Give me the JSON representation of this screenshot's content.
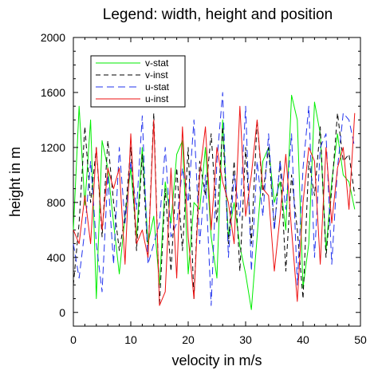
{
  "chart_data": {
    "type": "line",
    "title": "Legend: width, height and position",
    "xlabel": "velocity in m/s",
    "ylabel": "height in m",
    "xlim": [
      0,
      50
    ],
    "ylim": [
      -100,
      2000
    ],
    "x_ticks": [
      0,
      10,
      20,
      30,
      40,
      50
    ],
    "y_ticks": [
      0,
      400,
      800,
      1200,
      1600,
      2000
    ],
    "x_tick_labels": [
      "0",
      "10",
      "20",
      "30",
      "40",
      "50"
    ],
    "y_tick_labels": [
      "0",
      "400",
      "800",
      "1200",
      "1600",
      "2000"
    ],
    "grid": false,
    "legend_position": "top-left",
    "series": [
      {
        "name": "v-stat",
        "color": "#00ee00",
        "dash": "solid",
        "x": [
          0,
          1,
          2,
          3,
          4,
          5,
          6,
          7,
          8,
          9,
          10,
          11,
          12,
          13,
          14,
          15,
          16,
          17,
          18,
          19,
          20,
          21,
          22,
          23,
          24,
          25,
          26,
          27,
          28,
          29,
          30,
          31,
          32,
          33,
          34,
          35,
          36,
          37,
          38,
          39,
          40,
          41,
          42,
          43,
          44,
          45,
          46,
          47,
          48,
          49
        ],
        "y": [
          600,
          1500,
          780,
          1400,
          100,
          1250,
          1050,
          650,
          280,
          700,
          1050,
          550,
          1200,
          500,
          700,
          200,
          950,
          650,
          1150,
          1250,
          280,
          800,
          750,
          1200,
          550,
          250,
          1400,
          550,
          800,
          480,
          280,
          20,
          550,
          1100,
          1200,
          800,
          950,
          600,
          1580,
          1400,
          180,
          500,
          1530,
          1300,
          450,
          950,
          1300,
          1000,
          950,
          750
        ]
      },
      {
        "name": "v-inst",
        "color": "#000000",
        "dash": "6,4",
        "x": [
          0,
          1,
          2,
          3,
          4,
          5,
          6,
          7,
          8,
          9,
          10,
          11,
          12,
          13,
          14,
          15,
          16,
          17,
          18,
          19,
          20,
          21,
          22,
          23,
          24,
          25,
          26,
          27,
          28,
          29,
          30,
          31,
          32,
          33,
          34,
          35,
          36,
          37,
          38,
          39,
          40,
          41,
          42,
          43,
          44,
          45,
          46,
          47,
          48,
          49
        ],
        "y": [
          200,
          650,
          1350,
          800,
          1200,
          550,
          1250,
          800,
          450,
          700,
          1200,
          450,
          1150,
          400,
          1450,
          50,
          900,
          300,
          1050,
          450,
          1200,
          100,
          1100,
          850,
          1300,
          650,
          1350,
          500,
          1100,
          300,
          1200,
          500,
          1400,
          850,
          1200,
          600,
          1100,
          300,
          1000,
          600,
          100,
          1100,
          850,
          1350,
          400,
          900,
          1450,
          1100,
          1150,
          850
        ]
      },
      {
        "name": "u-stat",
        "color": "#2233ee",
        "dash": "9,5",
        "x": [
          0,
          1,
          2,
          3,
          4,
          5,
          6,
          7,
          8,
          9,
          10,
          11,
          12,
          13,
          14,
          15,
          16,
          17,
          18,
          19,
          20,
          21,
          22,
          23,
          24,
          25,
          26,
          27,
          28,
          29,
          30,
          31,
          32,
          33,
          34,
          35,
          36,
          37,
          38,
          39,
          40,
          41,
          42,
          43,
          44,
          45,
          46,
          47,
          48,
          49
        ],
        "y": [
          500,
          250,
          600,
          1100,
          500,
          150,
          1000,
          350,
          1200,
          650,
          1100,
          750,
          1430,
          350,
          500,
          650,
          1200,
          550,
          650,
          1050,
          800,
          1400,
          500,
          1000,
          50,
          1100,
          1600,
          400,
          1000,
          700,
          1500,
          300,
          1100,
          700,
          1300,
          600,
          1100,
          750,
          1300,
          200,
          1050,
          1500,
          400,
          1200,
          1300,
          350,
          1050,
          1450,
          1400,
          1200
        ]
      },
      {
        "name": "u-inst",
        "color": "#ee1111",
        "dash": "solid",
        "x": [
          0,
          1,
          2,
          3,
          4,
          5,
          6,
          7,
          8,
          9,
          10,
          11,
          12,
          13,
          14,
          15,
          16,
          17,
          18,
          19,
          20,
          21,
          22,
          23,
          24,
          25,
          26,
          27,
          28,
          29,
          30,
          31,
          32,
          33,
          34,
          35,
          36,
          37,
          38,
          39,
          40,
          41,
          42,
          43,
          44,
          45,
          46,
          47,
          48,
          49
        ],
        "y": [
          600,
          500,
          850,
          500,
          1200,
          600,
          1050,
          900,
          1050,
          350,
          1300,
          500,
          600,
          400,
          1400,
          50,
          150,
          1050,
          250,
          1350,
          550,
          100,
          1000,
          1350,
          600,
          1200,
          950,
          800,
          500,
          1500,
          700,
          1000,
          1400,
          900,
          850,
          300,
          700,
          1150,
          600,
          80,
          800,
          1200,
          1100,
          350,
          1200,
          650,
          1050,
          1200,
          750,
          1450
        ]
      }
    ]
  }
}
